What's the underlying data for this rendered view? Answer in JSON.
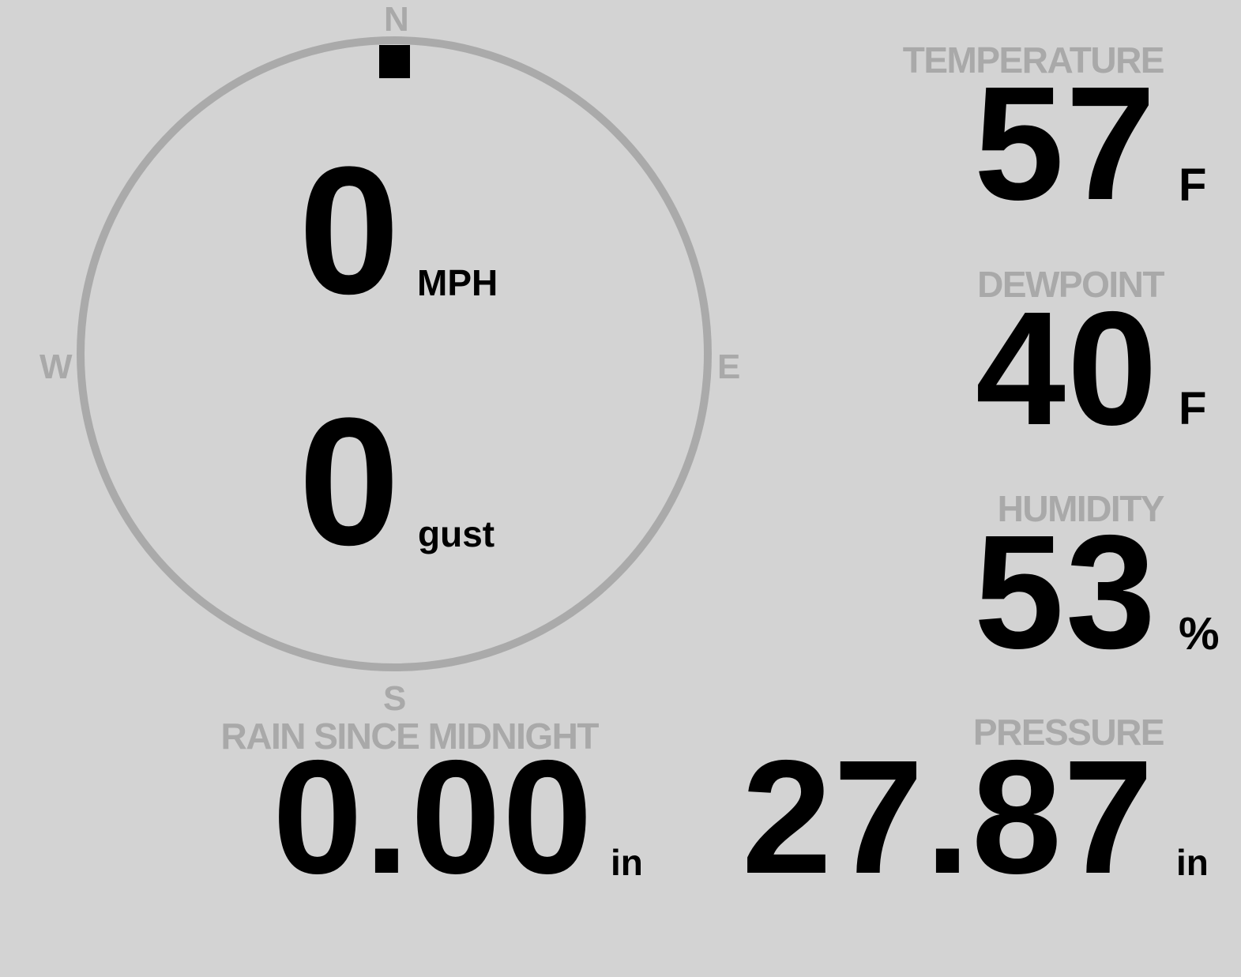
{
  "wind": {
    "speed": "0",
    "speed_unit": "MPH",
    "gust": "0",
    "gust_unit": "gust",
    "direction_deg": 0,
    "cardinals": {
      "n": "N",
      "e": "E",
      "s": "S",
      "w": "W"
    }
  },
  "temperature": {
    "label": "TEMPERATURE",
    "value": "57",
    "unit": "F"
  },
  "dewpoint": {
    "label": "DEWPOINT",
    "value": "40",
    "unit": "F"
  },
  "humidity": {
    "label": "HUMIDITY",
    "value": "53",
    "unit": "%"
  },
  "pressure": {
    "label": "PRESSURE",
    "value": "27.87",
    "unit": "in"
  },
  "rain": {
    "label": "RAIN SINCE MIDNIGHT",
    "value": "0.00",
    "unit": "in"
  },
  "colors": {
    "background": "#d3d3d3",
    "label": "#a9a9a9",
    "ring": "#aaaaaa",
    "value": "#000000"
  }
}
